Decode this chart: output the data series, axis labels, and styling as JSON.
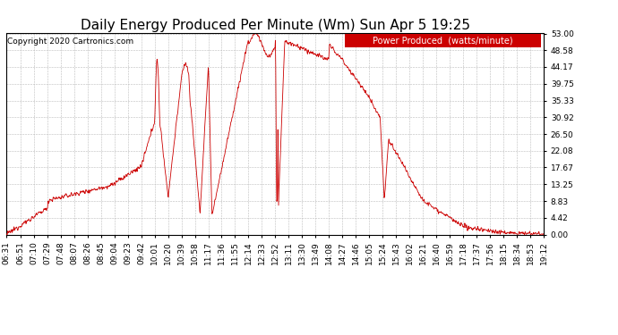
{
  "title": "Daily Energy Produced Per Minute (Wm) Sun Apr 5 19:25",
  "copyright": "Copyright 2020 Cartronics.com",
  "legend_label": "Power Produced  (watts/minute)",
  "legend_bg": "#cc0000",
  "legend_fg": "#ffffff",
  "line_color": "#cc0000",
  "background_color": "#ffffff",
  "grid_color": "#bbbbbb",
  "ymin": 0.0,
  "ymax": 53.0,
  "yticks": [
    0.0,
    4.42,
    8.83,
    13.25,
    17.67,
    22.08,
    26.5,
    30.92,
    35.33,
    39.75,
    44.17,
    48.58,
    53.0
  ],
  "xtick_labels": [
    "06:31",
    "06:51",
    "07:10",
    "07:29",
    "07:48",
    "08:07",
    "08:26",
    "08:45",
    "09:04",
    "09:23",
    "09:42",
    "10:01",
    "10:20",
    "10:39",
    "10:58",
    "11:17",
    "11:36",
    "11:55",
    "12:14",
    "12:33",
    "12:52",
    "13:11",
    "13:30",
    "13:49",
    "14:08",
    "14:27",
    "14:46",
    "15:05",
    "15:24",
    "15:43",
    "16:02",
    "16:21",
    "16:40",
    "16:59",
    "17:18",
    "17:37",
    "17:56",
    "18:15",
    "18:34",
    "18:53",
    "19:12"
  ],
  "title_fontsize": 11,
  "tick_fontsize": 6.5,
  "copyright_fontsize": 6.5,
  "legend_fontsize": 7
}
